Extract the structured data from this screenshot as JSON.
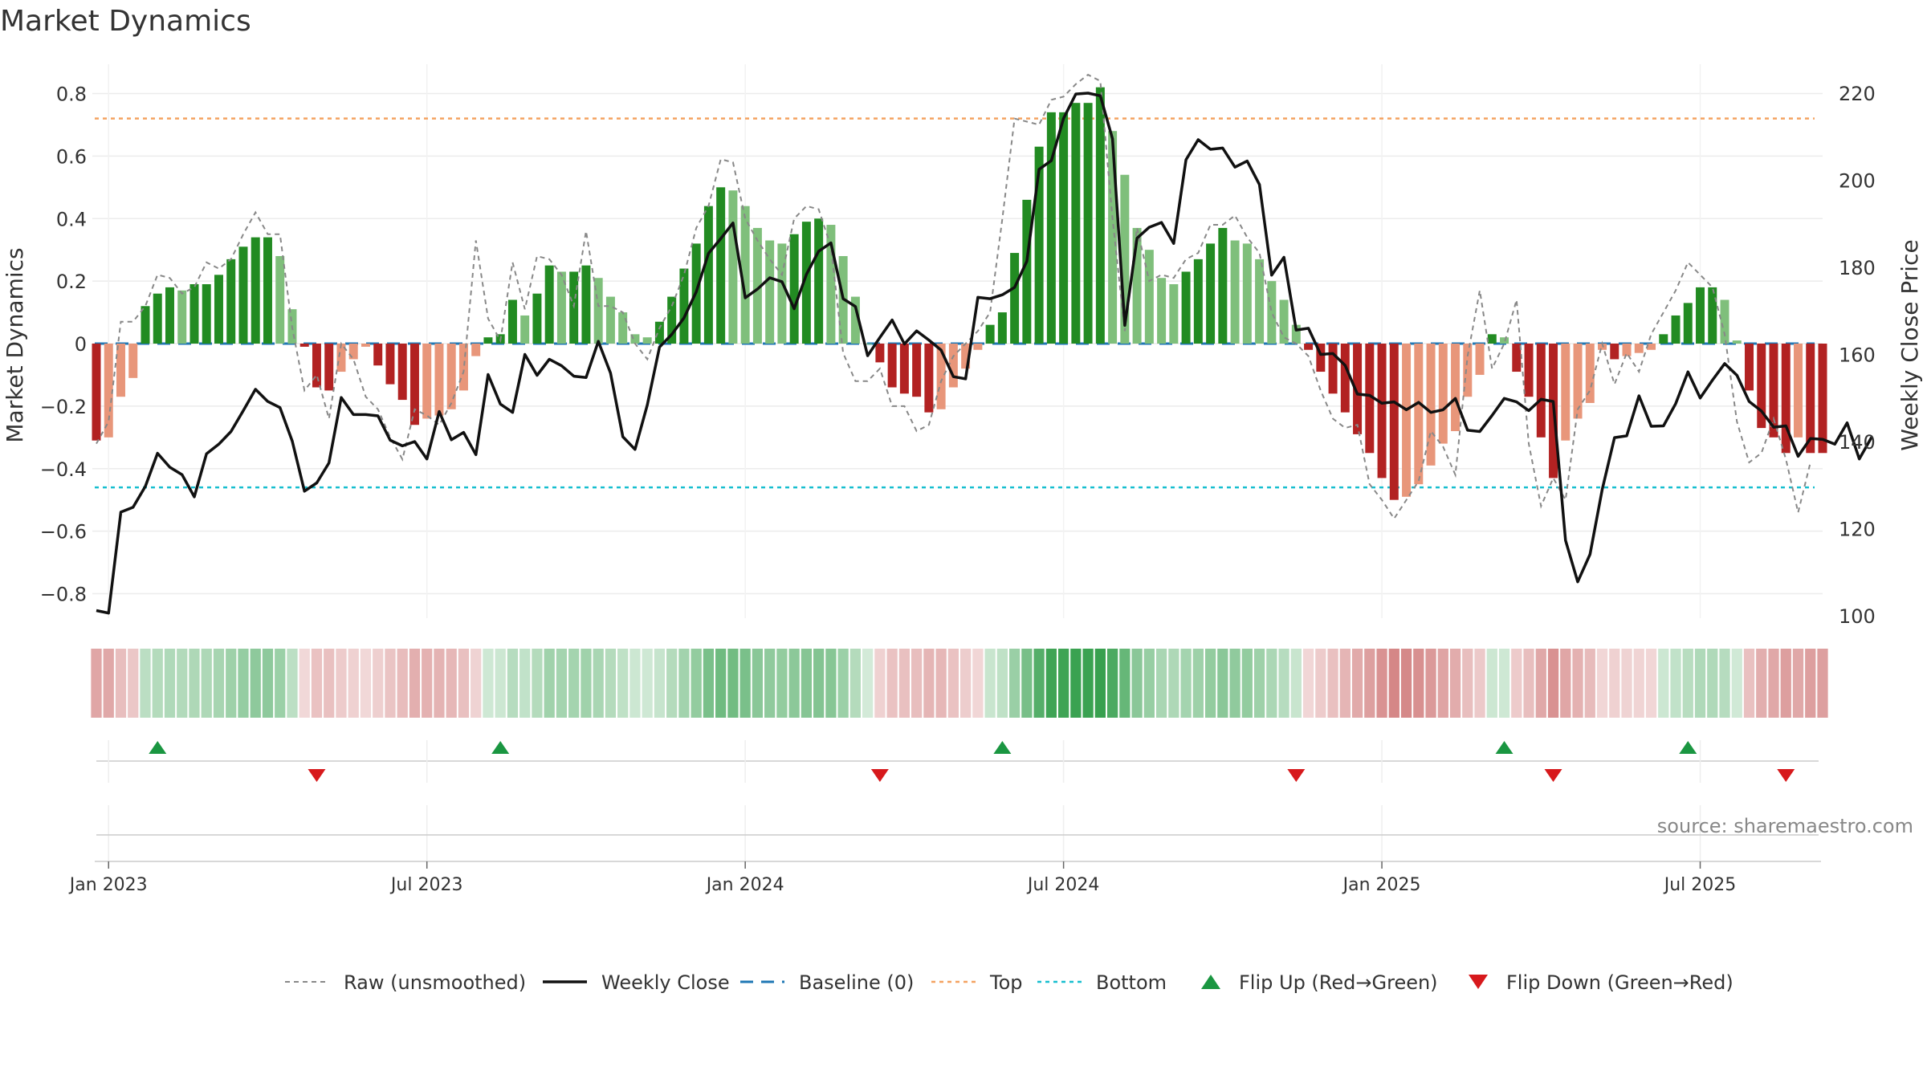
{
  "chart_data": {
    "type": "bar",
    "title": "Market Dynamics",
    "source": "source: sharemaestro.com",
    "left_axis": {
      "label": "Market Dynamics",
      "ylim": [
        -0.88,
        0.9
      ],
      "ticks": [
        -0.8,
        -0.6,
        -0.4,
        -0.2,
        0,
        0.2,
        0.4,
        0.6,
        0.8
      ]
    },
    "right_axis": {
      "label": "Weekly Close Price",
      "ylim": [
        99.2,
        222.8
      ],
      "ticks": [
        100,
        120,
        140,
        160,
        180,
        200,
        220
      ]
    },
    "x_ticks": [
      {
        "label": "Jan 2023",
        "week": 1
      },
      {
        "label": "Jul 2023",
        "week": 27
      },
      {
        "label": "Jan 2024",
        "week": 53
      },
      {
        "label": "Jul 2024",
        "week": 79
      },
      {
        "label": "Jan 2025",
        "week": 105
      },
      {
        "label": "Jul 2025",
        "week": 131
      }
    ],
    "top_level": 0.72,
    "bottom_level": -0.46,
    "grid": true,
    "legend_position": "bottom",
    "legend": [
      {
        "label": "Raw (unsmoothed)",
        "kind": "dashed-gray"
      },
      {
        "label": "Weekly Close",
        "kind": "solid-black"
      },
      {
        "label": "Baseline (0)",
        "kind": "dashed-blue"
      },
      {
        "label": "Top",
        "kind": "dotted-orange"
      },
      {
        "label": "Bottom",
        "kind": "dotted-cyan"
      },
      {
        "label": "Flip Up (Red→Green)",
        "kind": "triangle-up"
      },
      {
        "label": "Flip Down (Green→Red)",
        "kind": "triangle-down"
      }
    ],
    "colors": {
      "strong_green": "#228b22",
      "light_green": "#7fbf7b",
      "strong_red": "#b22222",
      "light_red": "#e8967a",
      "raw": "#888888",
      "close": "#111111",
      "baseline": "#1f77b4",
      "top": "#f4a261",
      "bottom": "#17becf",
      "flip_up": "#1a9641",
      "flip_down": "#d7191c"
    },
    "flip_up_weeks": [
      5,
      33,
      74,
      115,
      130
    ],
    "flip_down_weeks": [
      18,
      64,
      98,
      119,
      138
    ],
    "dynamics": [
      -0.31,
      -0.3,
      -0.17,
      -0.11,
      0.12,
      0.16,
      0.18,
      0.17,
      0.19,
      0.19,
      0.22,
      0.27,
      0.31,
      0.34,
      0.34,
      0.28,
      0.11,
      -0.01,
      -0.14,
      -0.15,
      -0.09,
      -0.05,
      -0.01,
      -0.07,
      -0.13,
      -0.18,
      -0.26,
      -0.24,
      -0.23,
      -0.21,
      -0.15,
      -0.04,
      0.02,
      0.03,
      0.14,
      0.09,
      0.16,
      0.25,
      0.23,
      0.23,
      0.25,
      0.21,
      0.15,
      0.1,
      0.03,
      0.02,
      0.07,
      0.15,
      0.24,
      0.32,
      0.44,
      0.5,
      0.49,
      0.44,
      0.37,
      0.33,
      0.32,
      0.35,
      0.39,
      0.4,
      0.38,
      0.28,
      0.15,
      0.0,
      -0.06,
      -0.14,
      -0.16,
      -0.17,
      -0.22,
      -0.21,
      -0.14,
      -0.08,
      -0.02,
      0.06,
      0.1,
      0.29,
      0.46,
      0.63,
      0.74,
      0.74,
      0.77,
      0.77,
      0.82,
      0.68,
      0.54,
      0.37,
      0.3,
      0.21,
      0.19,
      0.23,
      0.27,
      0.32,
      0.37,
      0.33,
      0.32,
      0.27,
      0.2,
      0.14,
      0.06,
      -0.02,
      -0.09,
      -0.16,
      -0.22,
      -0.29,
      -0.35,
      -0.43,
      -0.5,
      -0.49,
      -0.45,
      -0.39,
      -0.32,
      -0.28,
      -0.17,
      -0.1,
      0.03,
      0.02,
      -0.09,
      -0.17,
      -0.3,
      -0.43,
      -0.31,
      -0.24,
      -0.19,
      -0.02,
      -0.05,
      -0.04,
      -0.03,
      -0.02,
      0.03,
      0.09,
      0.13,
      0.18,
      0.18,
      0.14,
      0.01,
      -0.15,
      -0.27,
      -0.3,
      -0.35,
      -0.3,
      -0.35,
      -0.35
    ],
    "raw": [
      -0.32,
      -0.25,
      0.07,
      0.07,
      0.12,
      0.22,
      0.21,
      0.16,
      0.18,
      0.26,
      0.24,
      0.27,
      0.35,
      0.42,
      0.35,
      0.35,
      0.05,
      -0.15,
      -0.1,
      -0.24,
      0.0,
      -0.05,
      -0.17,
      -0.21,
      -0.3,
      -0.37,
      -0.21,
      -0.23,
      -0.26,
      -0.19,
      -0.09,
      0.33,
      0.08,
      0.01,
      0.26,
      0.11,
      0.28,
      0.27,
      0.22,
      0.12,
      0.36,
      0.12,
      0.12,
      0.1,
      0.0,
      -0.05,
      0.05,
      0.12,
      0.22,
      0.37,
      0.44,
      0.59,
      0.58,
      0.4,
      0.33,
      0.27,
      0.22,
      0.4,
      0.44,
      0.43,
      0.31,
      -0.03,
      -0.12,
      -0.12,
      -0.08,
      -0.2,
      -0.2,
      -0.28,
      -0.26,
      -0.12,
      -0.04,
      0.0,
      0.04,
      0.1,
      0.4,
      0.72,
      0.71,
      0.7,
      0.78,
      0.79,
      0.83,
      0.86,
      0.84,
      0.4,
      0.04,
      0.37,
      0.2,
      0.22,
      0.21,
      0.27,
      0.29,
      0.38,
      0.38,
      0.41,
      0.34,
      0.29,
      0.1,
      0.02,
      0.0,
      -0.04,
      -0.15,
      -0.24,
      -0.27,
      -0.26,
      -0.45,
      -0.5,
      -0.56,
      -0.5,
      -0.44,
      -0.28,
      -0.33,
      -0.42,
      -0.04,
      0.17,
      -0.08,
      0.0,
      0.14,
      -0.32,
      -0.52,
      -0.43,
      -0.5,
      -0.21,
      -0.15,
      0.0,
      -0.13,
      -0.03,
      -0.09,
      0.03,
      0.1,
      0.17,
      0.26,
      0.22,
      0.18,
      0.03,
      -0.25,
      -0.38,
      -0.35,
      -0.24,
      -0.37,
      -0.54,
      -0.38
    ],
    "close": [
      101.2,
      100.6,
      123.8,
      124.9,
      129.7,
      137.3,
      134.1,
      132.4,
      127.3,
      137.2,
      139.4,
      142.3,
      147.1,
      152.0,
      149.2,
      147.8,
      140.1,
      128.6,
      130.5,
      135.1,
      150.1,
      146.2,
      146.2,
      145.9,
      140.3,
      139.0,
      140.0,
      136.0,
      146.9,
      140.4,
      142.1,
      137.0,
      155.4,
      148.6,
      146.7,
      160.0,
      155.2,
      158.9,
      157.4,
      155.0,
      154.7,
      163.0,
      155.7,
      141.1,
      138.2,
      148.4,
      161.7,
      164.6,
      168.4,
      174.4,
      183.2,
      186.6,
      190.2,
      173.0,
      175.0,
      177.6,
      176.7,
      170.5,
      178.4,
      183.7,
      185.6,
      172.8,
      171.0,
      159.7,
      163.9,
      167.9,
      162.4,
      165.4,
      163.3,
      161.0,
      154.9,
      154.4,
      173.1,
      172.8,
      173.7,
      175.4,
      181.4,
      202.5,
      204.5,
      214.2,
      219.8,
      220.0,
      219.4,
      209.5,
      166.7,
      186.7,
      189.2,
      190.3,
      185.5,
      204.7,
      209.3,
      207.1,
      207.4,
      203.0,
      204.4,
      199.0,
      178.2,
      182.3,
      165.6,
      166.0,
      160.0,
      160.2,
      157.5,
      150.9,
      150.6,
      148.8,
      149.1,
      147.3,
      149.0,
      146.7,
      147.3,
      149.9,
      142.6,
      142.3,
      146.0,
      149.9,
      149.1,
      147.1,
      149.7,
      149.2,
      117.3,
      107.8,
      114.1,
      129.0,
      140.9,
      141.3,
      150.5,
      143.5,
      143.6,
      148.7,
      156.0,
      150.0,
      154.1,
      157.9,
      155.2,
      149.2,
      147.0,
      143.3,
      143.6,
      136.6,
      140.7,
      140.5,
      139.4,
      144.3,
      136.0,
      141.0
    ],
    "heat_strip": "per-week shading proportional to market dynamics value (green positive, red negative)"
  }
}
